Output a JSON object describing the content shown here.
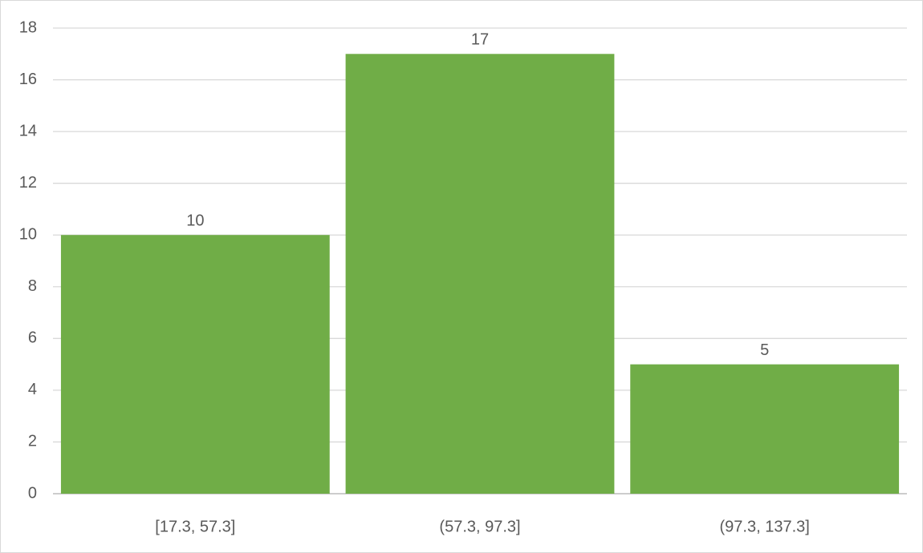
{
  "chart_data": {
    "type": "bar",
    "categories": [
      "[17.3, 57.3]",
      "(57.3, 97.3]",
      "(97.3, 137.3]"
    ],
    "values": [
      10,
      17,
      5
    ],
    "color": "#70ad47",
    "ylim": [
      0,
      18
    ],
    "yticks": [
      0,
      2,
      4,
      6,
      8,
      10,
      12,
      14,
      16,
      18
    ],
    "grid": true,
    "data_labels": true
  }
}
